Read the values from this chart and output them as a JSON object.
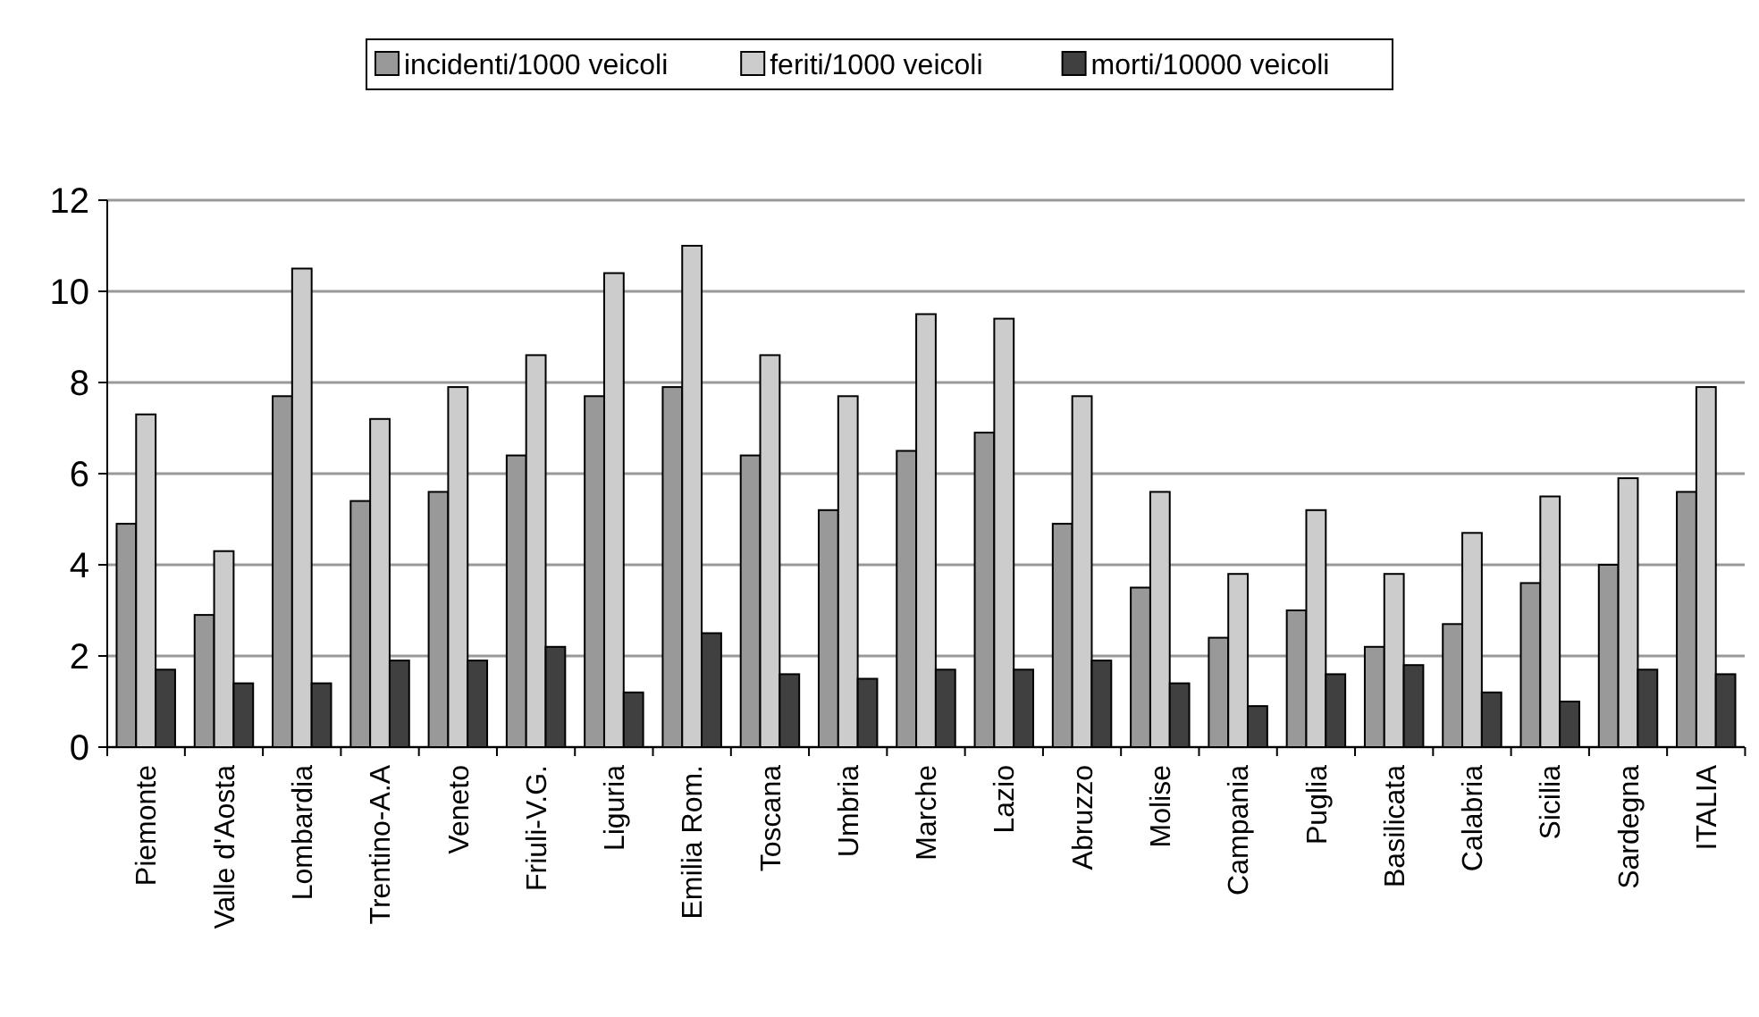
{
  "chart_data": {
    "type": "bar",
    "categories": [
      "Piemonte",
      "Valle d'Aosta",
      "Lombardia",
      "Trentino-A.A",
      "Veneto",
      "Friuli-V.G.",
      "Liguria",
      "Emilia Rom.",
      "Toscana",
      "Umbria",
      "Marche",
      "Lazio",
      "Abruzzo",
      "Molise",
      "Campania",
      "Puglia",
      "Basilicata",
      "Calabria",
      "Sicilia",
      "Sardegna",
      "ITALIA"
    ],
    "series": [
      {
        "name": "incidenti/1000 veicoli",
        "color": "#999999",
        "values": [
          4.9,
          2.9,
          7.7,
          5.4,
          5.6,
          6.4,
          7.7,
          7.9,
          6.4,
          5.2,
          6.5,
          6.9,
          4.9,
          3.5,
          2.4,
          3.0,
          2.2,
          2.7,
          3.6,
          4.0,
          5.6
        ]
      },
      {
        "name": "feriti/1000 veicoli",
        "color": "#cccccc",
        "values": [
          7.3,
          4.3,
          10.5,
          7.2,
          7.9,
          8.6,
          10.4,
          11.0,
          8.6,
          7.7,
          9.5,
          9.4,
          7.7,
          5.6,
          3.8,
          5.2,
          3.8,
          4.7,
          5.5,
          5.9,
          7.9
        ]
      },
      {
        "name": "morti/10000 veicoli",
        "color": "#404040",
        "values": [
          1.7,
          1.4,
          1.4,
          1.9,
          1.9,
          2.2,
          1.2,
          2.5,
          1.6,
          1.5,
          1.7,
          1.7,
          1.9,
          1.4,
          0.9,
          1.6,
          1.8,
          1.2,
          1.0,
          1.7,
          1.6
        ]
      }
    ],
    "ylim": [
      0,
      12
    ],
    "yticks": [
      0,
      2,
      4,
      6,
      8,
      10,
      12
    ],
    "grid": "y",
    "legend": "top"
  }
}
